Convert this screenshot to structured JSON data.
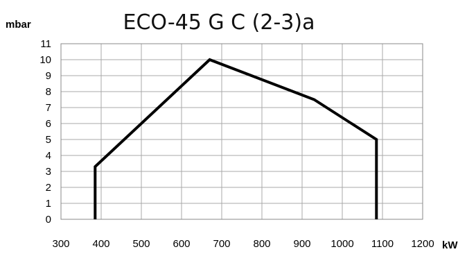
{
  "chart_data": {
    "type": "line",
    "title": "ECO-45 G C (2-3)a",
    "xlabel": "kW",
    "ylabel": "mbar",
    "xlim": [
      300,
      1200
    ],
    "ylim": [
      0,
      11
    ],
    "xticks": [
      "300",
      "400",
      "500",
      "600",
      "700",
      "800",
      "900",
      "1000",
      "1100",
      "1200"
    ],
    "yticks": [
      "0",
      "1",
      "2",
      "3",
      "4",
      "5",
      "6",
      "7",
      "8",
      "9",
      "10",
      "11"
    ],
    "grid": true,
    "series": [
      {
        "color": "#000000",
        "points": [
          {
            "x": 385,
            "y": 0
          },
          {
            "x": 385,
            "y": 3.3
          },
          {
            "x": 670,
            "y": 10
          },
          {
            "x": 930,
            "y": 7.5
          },
          {
            "x": 1085,
            "y": 5
          },
          {
            "x": 1085,
            "y": 0
          }
        ]
      }
    ]
  }
}
